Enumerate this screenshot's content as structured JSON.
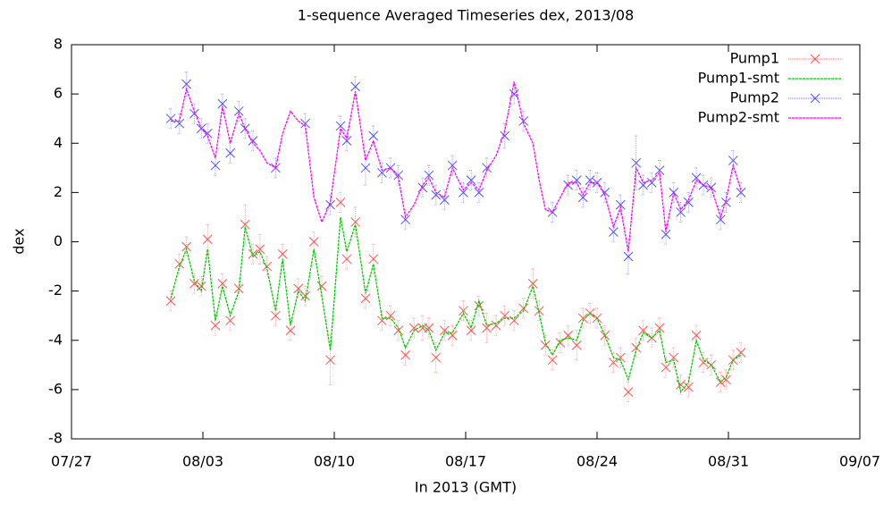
{
  "chart_data": {
    "type": "scatter",
    "title": "1-sequence Averaged Timeseries dex, 2013/08",
    "x_label": "In 2013 (GMT)",
    "y_label": "dex",
    "x": [
      "2013-08-01T07:00Z",
      "2013-08-01T18:00Z",
      "2013-08-02T03:00Z",
      "2013-08-02T13:00Z",
      "2013-08-02T22:00Z",
      "2013-08-03T06:00Z",
      "2013-08-03T16:00Z",
      "2013-08-04T01:00Z",
      "2013-08-04T11:00Z",
      "2013-08-04T22:00Z",
      "2013-08-05T06:00Z",
      "2013-08-05T16:00Z",
      "2013-08-06T01:00Z",
      "2013-08-06T10:00Z",
      "2013-08-06T21:00Z",
      "2013-08-07T06:00Z",
      "2013-08-07T16:00Z",
      "2013-08-08T02:00Z",
      "2013-08-08T11:00Z",
      "2013-08-08T22:00Z",
      "2013-08-09T08:00Z",
      "2013-08-09T19:00Z",
      "2013-08-10T08:00Z",
      "2013-08-10T16:00Z",
      "2013-08-11T03:00Z",
      "2013-08-11T16:00Z",
      "2013-08-12T02:00Z",
      "2013-08-12T13:00Z",
      "2013-08-13T00:00Z",
      "2013-08-13T10:00Z",
      "2013-08-13T19:00Z",
      "2013-08-14T06:00Z",
      "2013-08-14T17:00Z",
      "2013-08-15T01:00Z",
      "2013-08-15T10:00Z",
      "2013-08-15T21:00Z",
      "2013-08-16T07:00Z",
      "2013-08-16T21:00Z",
      "2013-08-17T07:00Z",
      "2013-08-17T17:00Z",
      "2013-08-18T03:00Z",
      "2013-08-18T15:00Z",
      "2013-08-19T02:00Z",
      "2013-08-19T14:00Z",
      "2013-08-20T02:00Z",
      "2013-08-20T14:00Z",
      "2013-08-20T22:00Z",
      "2013-08-21T06:00Z",
      "2013-08-21T15:00Z",
      "2013-08-22T01:00Z",
      "2013-08-22T11:00Z",
      "2013-08-22T22:00Z",
      "2013-08-23T06:00Z",
      "2013-08-23T15:00Z",
      "2013-08-24T00:00Z",
      "2013-08-24T10:00Z",
      "2013-08-24T21:00Z",
      "2013-08-25T06:00Z",
      "2013-08-25T16:00Z",
      "2013-08-26T02:00Z",
      "2013-08-26T11:00Z",
      "2013-08-26T22:00Z",
      "2013-08-27T08:00Z",
      "2013-08-27T16:00Z",
      "2013-08-28T02:00Z",
      "2013-08-28T11:00Z",
      "2013-08-28T21:00Z",
      "2013-08-29T07:00Z",
      "2013-08-29T16:00Z",
      "2013-08-30T02:00Z",
      "2013-08-30T14:00Z",
      "2013-08-30T21:00Z",
      "2013-08-31T06:00Z",
      "2013-08-31T16:00Z"
    ],
    "series": [
      {
        "name": "Pump1",
        "color": "#ff5050",
        "style": "points",
        "values": [
          -2.4,
          -0.9,
          -0.2,
          -1.7,
          -1.8,
          0.1,
          -3.4,
          -1.7,
          -3.2,
          -1.9,
          0.7,
          -0.5,
          -0.3,
          -1.0,
          -3.0,
          -0.5,
          -3.6,
          -1.9,
          -2.2,
          0.0,
          -1.8,
          -4.8,
          1.6,
          -0.7,
          0.8,
          -2.3,
          -0.7,
          -3.2,
          -3.0,
          -3.6,
          -4.6,
          -3.5,
          -3.5,
          -3.5,
          -4.7,
          -3.6,
          -3.8,
          -2.8,
          -3.6,
          -2.6,
          -3.5,
          -3.4,
          -3.0,
          -3.2,
          -2.7,
          -1.7,
          -2.8,
          -4.2,
          -4.8,
          -4.1,
          -3.8,
          -4.2,
          -3.1,
          -2.9,
          -3.1,
          -3.8,
          -4.9,
          -4.7,
          -6.1,
          -4.3,
          -3.6,
          -3.9,
          -3.5,
          -5.1,
          -4.7,
          -5.8,
          -5.9,
          -3.8,
          -4.9,
          -5.0,
          -5.7,
          -5.6,
          -4.8,
          -4.5
        ],
        "errors": [
          0.4,
          0.4,
          0.4,
          0.4,
          0.4,
          0.6,
          0.4,
          0.4,
          0.4,
          0.4,
          0.8,
          0.4,
          0.6,
          0.4,
          0.4,
          0.4,
          0.4,
          0.4,
          0.4,
          0.4,
          0.4,
          1.0,
          0.4,
          0.4,
          0.6,
          0.4,
          0.6,
          0.4,
          0.4,
          0.4,
          0.4,
          0.4,
          0.5,
          0.4,
          0.6,
          0.4,
          0.4,
          0.4,
          0.4,
          0.4,
          0.6,
          0.4,
          0.4,
          0.4,
          0.4,
          0.6,
          0.4,
          0.4,
          0.4,
          0.4,
          0.4,
          0.6,
          0.4,
          0.4,
          0.4,
          0.4,
          0.4,
          0.4,
          0.4,
          0.4,
          0.4,
          0.4,
          0.4,
          0.4,
          0.4,
          0.4,
          0.4,
          0.4,
          0.4,
          0.4,
          0.4,
          0.4,
          0.4,
          0.4
        ]
      },
      {
        "name": "Pump1-smt",
        "color": "#00cc00",
        "style": "line",
        "values": [
          -2.3,
          -1.0,
          -0.3,
          -1.6,
          -2.0,
          -0.3,
          -3.2,
          -1.8,
          -3.0,
          -2.0,
          0.6,
          -0.6,
          -0.4,
          -1.1,
          -2.8,
          -0.7,
          -3.4,
          -2.0,
          -2.4,
          -0.3,
          -2.2,
          -4.4,
          1.0,
          -0.4,
          0.7,
          -2.1,
          -0.9,
          -3.1,
          -3.1,
          -3.5,
          -4.3,
          -3.6,
          -3.4,
          -3.6,
          -4.4,
          -3.7,
          -3.7,
          -2.9,
          -3.5,
          -2.4,
          -3.4,
          -3.3,
          -3.1,
          -3.1,
          -2.8,
          -1.8,
          -2.9,
          -4.1,
          -4.6,
          -4.0,
          -3.9,
          -4.0,
          -3.2,
          -2.9,
          -3.1,
          -3.8,
          -4.7,
          -4.8,
          -5.6,
          -4.4,
          -3.7,
          -3.9,
          -3.6,
          -4.9,
          -4.8,
          -6.1,
          -5.7,
          -4.0,
          -4.8,
          -5.0,
          -5.7,
          -5.5,
          -4.8,
          -4.6
        ]
      },
      {
        "name": "Pump2",
        "color": "#5050ff",
        "style": "points",
        "values": [
          5.0,
          4.8,
          6.4,
          5.2,
          4.6,
          4.4,
          3.1,
          5.6,
          3.6,
          5.3,
          4.6,
          4.1,
          null,
          null,
          3.0,
          null,
          null,
          null,
          4.8,
          null,
          null,
          1.5,
          4.7,
          4.1,
          6.3,
          3.0,
          4.3,
          2.8,
          3.0,
          2.7,
          0.9,
          null,
          2.2,
          2.7,
          1.9,
          1.7,
          3.1,
          2.0,
          2.5,
          2.0,
          3.0,
          null,
          4.3,
          6.0,
          4.9,
          null,
          null,
          null,
          1.2,
          null,
          2.3,
          2.5,
          1.8,
          2.5,
          2.4,
          2.0,
          0.4,
          1.5,
          -0.6,
          3.2,
          2.3,
          2.4,
          2.9,
          0.3,
          2.0,
          1.2,
          1.6,
          2.6,
          2.3,
          2.2,
          0.9,
          1.6,
          3.3,
          2.0
        ],
        "errors": [
          0.4,
          0.4,
          0.5,
          0.4,
          0.4,
          0.4,
          0.4,
          0.4,
          0.4,
          0.4,
          0.4,
          0.4,
          null,
          null,
          0.4,
          null,
          null,
          null,
          0.4,
          null,
          null,
          0.4,
          0.4,
          0.4,
          0.4,
          0.7,
          0.4,
          0.4,
          0.4,
          0.4,
          0.4,
          null,
          0.4,
          0.4,
          0.4,
          0.4,
          0.4,
          0.4,
          0.4,
          0.4,
          0.4,
          null,
          0.5,
          0.4,
          0.4,
          null,
          null,
          null,
          0.4,
          null,
          0.4,
          0.4,
          0.4,
          0.4,
          0.4,
          0.4,
          0.4,
          0.4,
          0.7,
          1.1,
          0.4,
          0.4,
          0.4,
          0.4,
          0.4,
          0.4,
          0.4,
          0.4,
          0.4,
          0.4,
          0.4,
          0.4,
          0.4,
          0.4
        ]
      },
      {
        "name": "Pump2-smt",
        "color": "#ff00ff",
        "style": "line",
        "values": [
          4.9,
          4.9,
          6.2,
          5.3,
          4.6,
          4.3,
          3.4,
          5.5,
          4.0,
          5.2,
          4.6,
          4.0,
          3.7,
          3.2,
          3.0,
          4.4,
          5.3,
          4.9,
          4.7,
          1.8,
          0.8,
          1.6,
          4.6,
          4.2,
          6.1,
          3.3,
          4.1,
          2.9,
          3.0,
          2.6,
          1.0,
          1.5,
          2.3,
          2.6,
          2.0,
          1.8,
          3.0,
          2.1,
          2.4,
          2.1,
          2.9,
          3.5,
          4.5,
          6.5,
          4.8,
          4.0,
          2.5,
          1.3,
          1.2,
          1.8,
          2.4,
          2.4,
          1.9,
          2.4,
          2.4,
          1.9,
          0.6,
          1.4,
          -0.4,
          3.0,
          2.4,
          2.5,
          2.8,
          0.4,
          2.0,
          1.3,
          1.7,
          2.5,
          2.3,
          2.2,
          1.0,
          1.7,
          3.1,
          2.1
        ]
      }
    ],
    "xlim": [
      "2013-07-27T00:00Z",
      "2013-09-07T00:00Z"
    ],
    "xticks": [
      {
        "value": "2013-07-27T00:00Z",
        "label": "07/27"
      },
      {
        "value": "2013-08-03T00:00Z",
        "label": "08/03"
      },
      {
        "value": "2013-08-10T00:00Z",
        "label": "08/10"
      },
      {
        "value": "2013-08-17T00:00Z",
        "label": "08/17"
      },
      {
        "value": "2013-08-24T00:00Z",
        "label": "08/24"
      },
      {
        "value": "2013-08-31T00:00Z",
        "label": "08/31"
      },
      {
        "value": "2013-09-07T00:00Z",
        "label": "09/07"
      }
    ],
    "ylim": [
      -8,
      8
    ],
    "yticks": [
      -8,
      -6,
      -4,
      -2,
      0,
      2,
      4,
      6,
      8
    ],
    "legend": "top-right"
  }
}
